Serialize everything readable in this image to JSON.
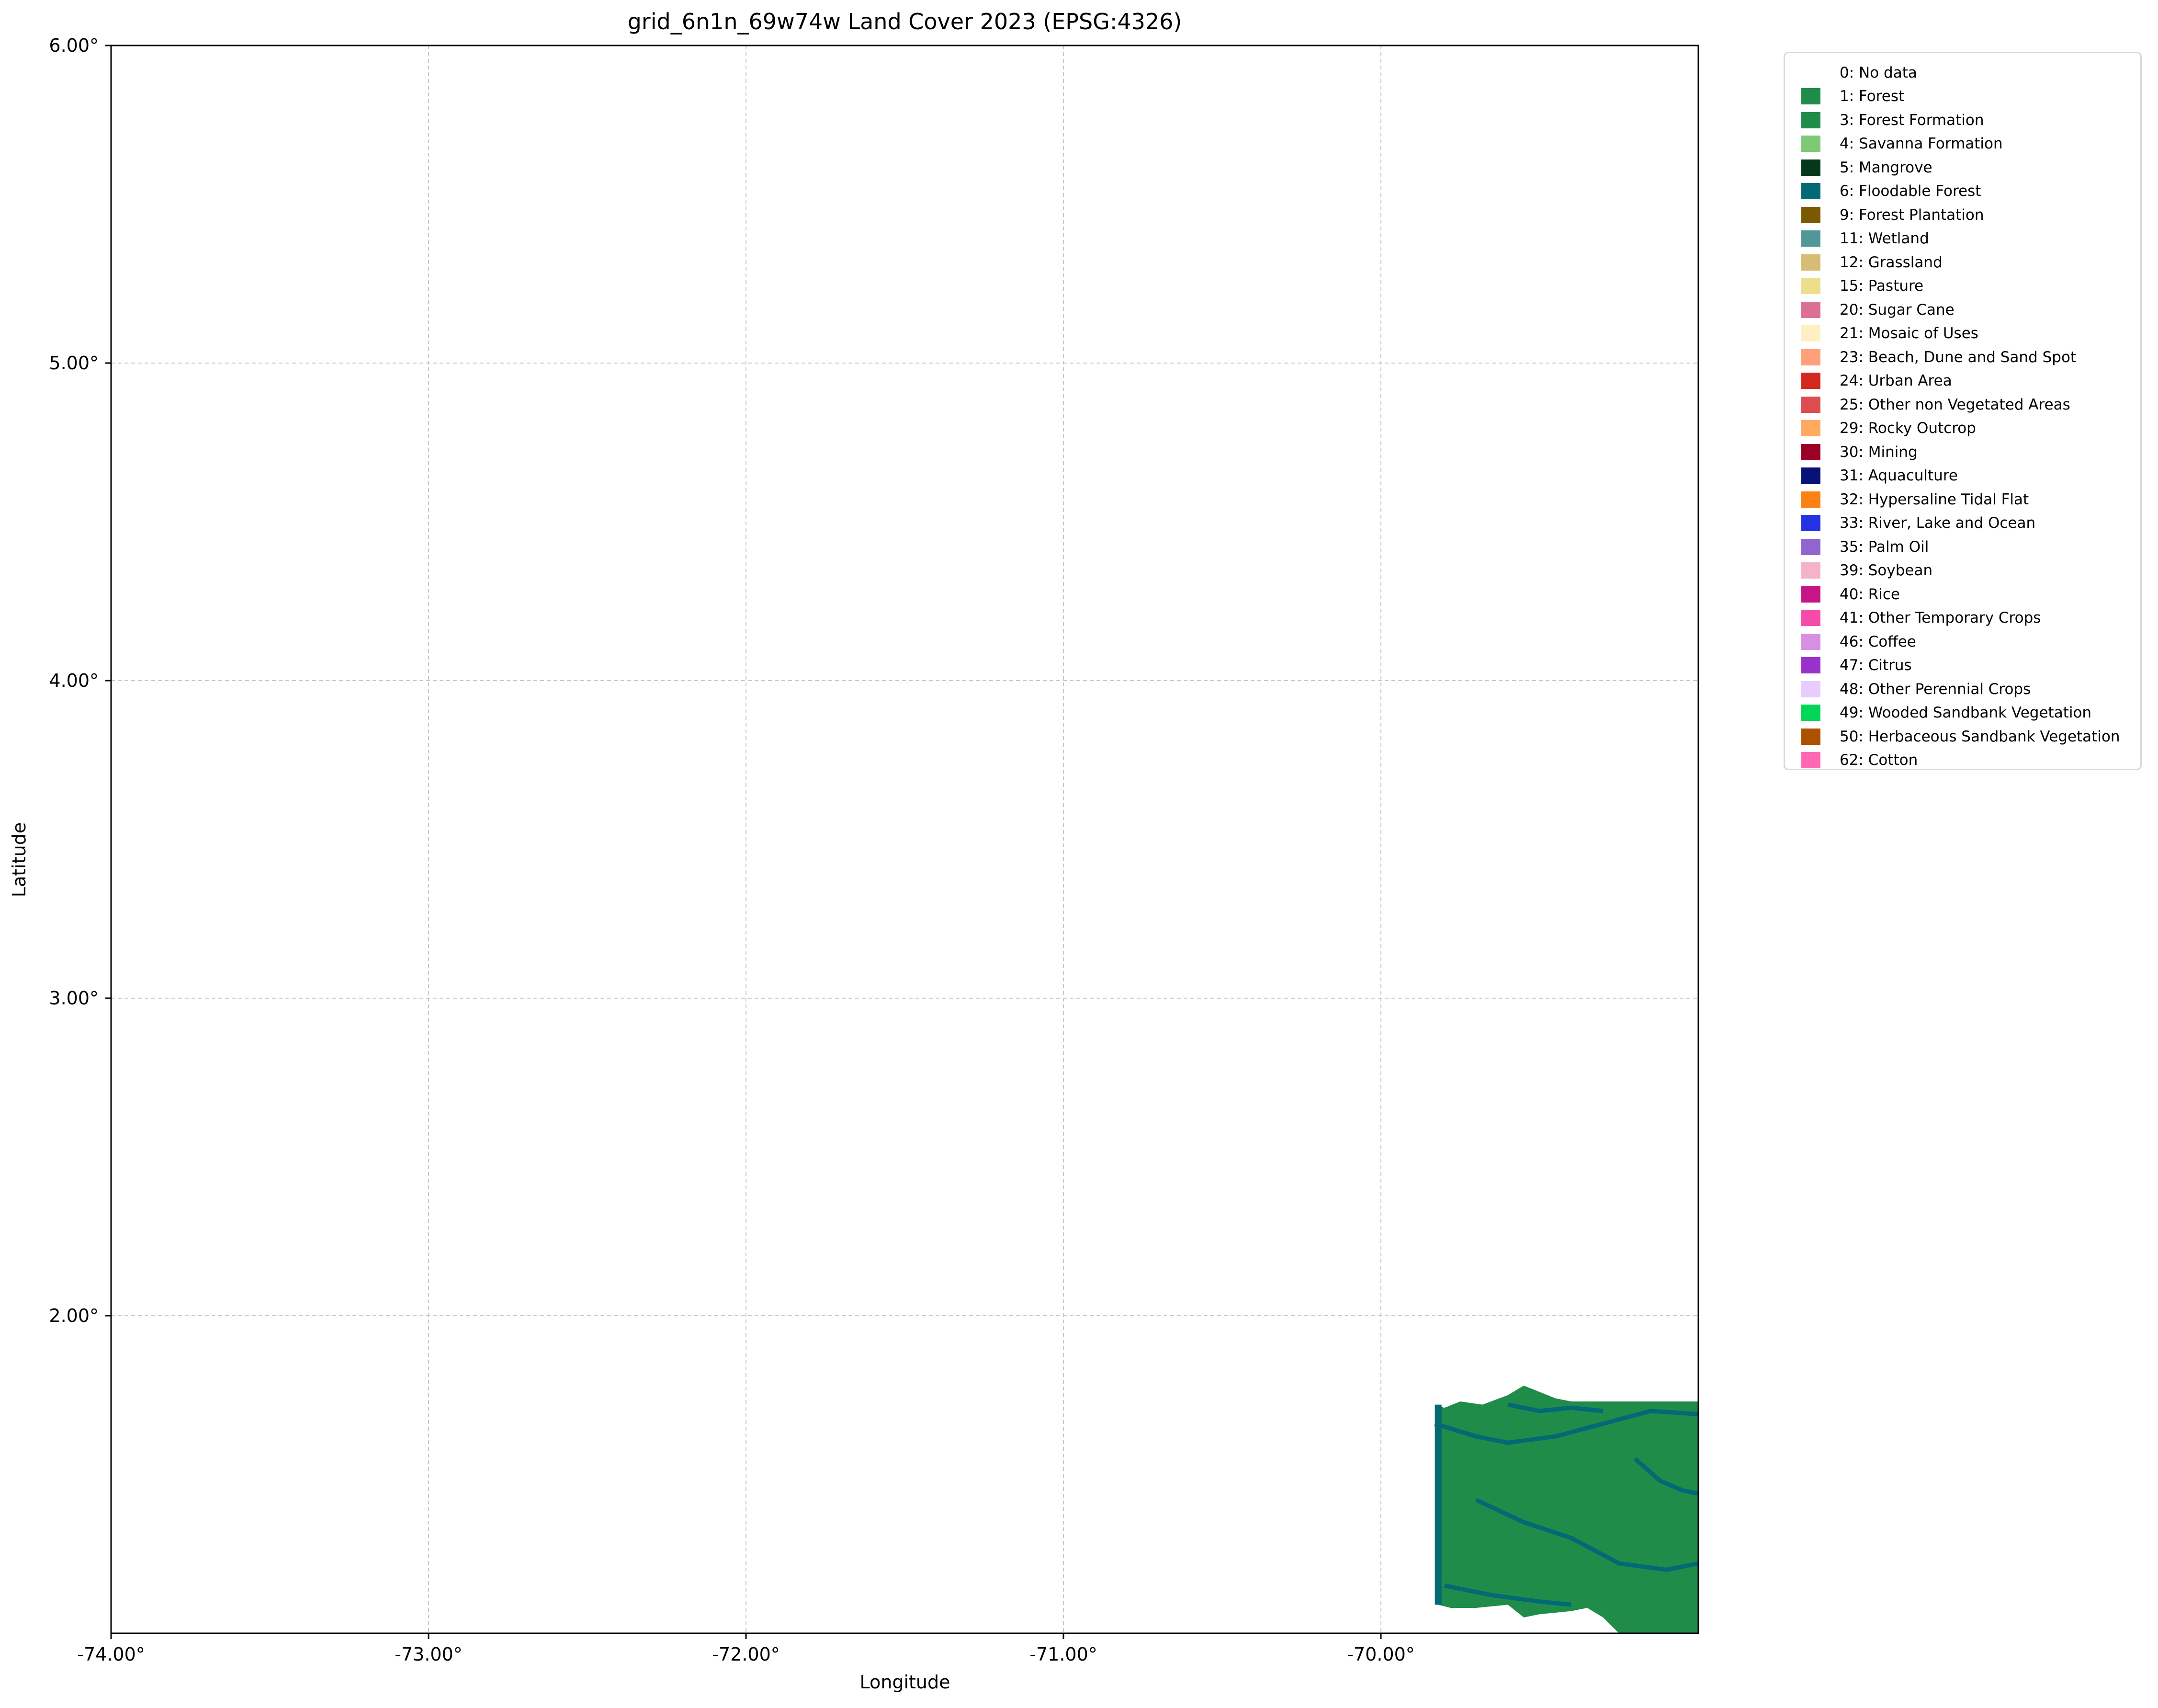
{
  "title": "grid_6n1n_69w74w Land Cover 2023 (EPSG:4326)",
  "chart_data": {
    "type": "map",
    "title": "grid_6n1n_69w74w Land Cover 2023 (EPSG:4326)",
    "xlabel": "Longitude",
    "ylabel": "Latitude",
    "xlim": [
      -74.0,
      -69.0
    ],
    "ylim": [
      1.0,
      6.0
    ],
    "grid": true,
    "legend_position": "outside right",
    "x_ticks": [
      {
        "value": -74.0,
        "label": "-74.00°"
      },
      {
        "value": -73.0,
        "label": "-73.00°"
      },
      {
        "value": -72.0,
        "label": "-72.00°"
      },
      {
        "value": -71.0,
        "label": "-71.00°"
      },
      {
        "value": -70.0,
        "label": "-70.00°"
      }
    ],
    "y_ticks": [
      {
        "value": 6.0,
        "label": "6.00°"
      },
      {
        "value": 5.0,
        "label": "5.00°"
      },
      {
        "value": 4.0,
        "label": "4.00°"
      },
      {
        "value": 3.0,
        "label": "3.00°"
      },
      {
        "value": 2.0,
        "label": "2.00°"
      }
    ],
    "data_extent": {
      "lon_min": -69.83,
      "lon_max": -69.0,
      "lat_min": 1.0,
      "lat_max": 1.78
    },
    "dominant_classes": [
      "1: Forest",
      "6: Floodable Forest"
    ],
    "legend": [
      {
        "label": "0: No data",
        "color": "#ffffff"
      },
      {
        "label": "1: Forest",
        "color": "#1f8d49"
      },
      {
        "label": "3: Forest Formation",
        "color": "#1f8d49"
      },
      {
        "label": "4: Savanna Formation",
        "color": "#7dc975"
      },
      {
        "label": "5: Mangrove",
        "color": "#04381d"
      },
      {
        "label": "6: Floodable Forest",
        "color": "#026975"
      },
      {
        "label": "9: Forest Plantation",
        "color": "#7a5900"
      },
      {
        "label": "11: Wetland",
        "color": "#519799"
      },
      {
        "label": "12: Grassland",
        "color": "#d6bc74"
      },
      {
        "label": "15: Pasture",
        "color": "#edde8e"
      },
      {
        "label": "20: Sugar Cane",
        "color": "#db7093"
      },
      {
        "label": "21: Mosaic of Uses",
        "color": "#ffefc3"
      },
      {
        "label": "23: Beach, Dune and Sand Spot",
        "color": "#ffa07a"
      },
      {
        "label": "24: Urban Area",
        "color": "#d4271e"
      },
      {
        "label": "25: Other non Vegetated Areas",
        "color": "#db4d4f"
      },
      {
        "label": "29: Rocky Outcrop",
        "color": "#ffaa5f"
      },
      {
        "label": "30: Mining",
        "color": "#9c0027"
      },
      {
        "label": "31: Aquaculture",
        "color": "#091077"
      },
      {
        "label": "32: Hypersaline Tidal Flat",
        "color": "#fc8114"
      },
      {
        "label": "33: River, Lake and Ocean",
        "color": "#2532e4"
      },
      {
        "label": "35: Palm Oil",
        "color": "#9065d0"
      },
      {
        "label": "39: Soybean",
        "color": "#f5b3c8"
      },
      {
        "label": "40: Rice",
        "color": "#c71585"
      },
      {
        "label": "41: Other Temporary Crops",
        "color": "#f54ca9"
      },
      {
        "label": "46: Coffee",
        "color": "#d68fe2"
      },
      {
        "label": "47: Citrus",
        "color": "#9932cc"
      },
      {
        "label": "48: Other Perennial Crops",
        "color": "#e6ccff"
      },
      {
        "label": "49: Wooded Sandbank Vegetation",
        "color": "#02d659"
      },
      {
        "label": "50: Herbaceous Sandbank Vegetation",
        "color": "#ad5100"
      },
      {
        "label": "62: Cotton",
        "color": "#ff69b4"
      }
    ]
  }
}
